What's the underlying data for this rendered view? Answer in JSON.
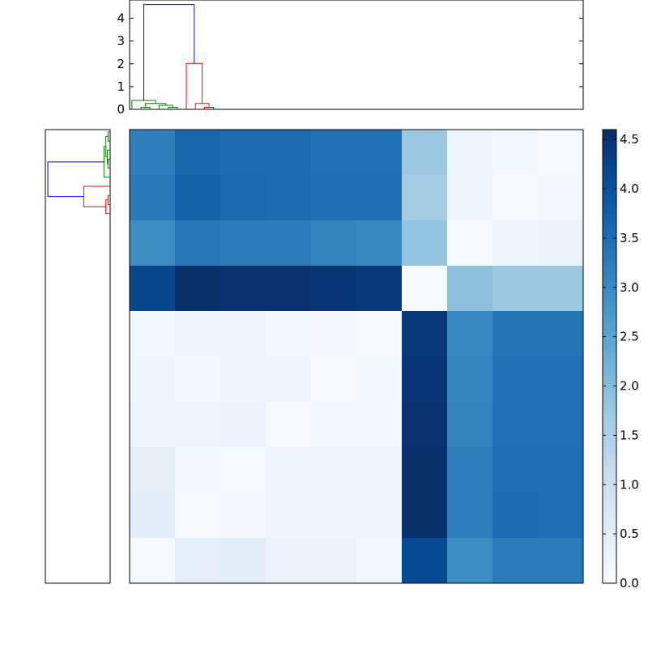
{
  "chart_data": [
    {
      "type": "dendrogram",
      "orientation": "top",
      "ylim": [
        0,
        4.8
      ],
      "y_ticks": [
        0,
        1,
        2,
        3,
        4
      ],
      "leaf_count": 10,
      "links": [
        {
          "color": "#008000",
          "left_x": 2.5,
          "left_y": 0,
          "right_x": 4.5,
          "right_y": 0,
          "height": 0.09
        },
        {
          "color": "#008000",
          "left_x": 8.5,
          "left_y": 0,
          "right_x": 10.5,
          "right_y": 0,
          "height": 0.09
        },
        {
          "color": "#008000",
          "left_x": 6.5,
          "left_y": 0,
          "right_x": 9.5,
          "right_y": 0.09,
          "height": 0.18
        },
        {
          "color": "#008000",
          "left_x": 3.5,
          "left_y": 0.09,
          "right_x": 8.0,
          "right_y": 0.18,
          "height": 0.26
        },
        {
          "color": "#008000",
          "left_x": 0.5,
          "left_y": 0,
          "right_x": 5.75,
          "right_y": 0.26,
          "height": 0.39
        },
        {
          "color": "#ff0000",
          "left_x": 16.5,
          "left_y": 0,
          "right_x": 18.5,
          "right_y": 0,
          "height": 0.09
        },
        {
          "color": "#ff0000",
          "left_x": 14.5,
          "left_y": 0,
          "right_x": 17.5,
          "right_y": 0.09,
          "height": 0.26
        },
        {
          "color": "#ff0000",
          "left_x": 12.5,
          "left_y": 0,
          "right_x": 16.0,
          "right_y": 0.26,
          "height": 2.02
        },
        {
          "color": "#0000ff",
          "left_x": 3.13,
          "left_y": 0.39,
          "right_x": 14.25,
          "right_y": 2.02,
          "height": 4.6
        }
      ]
    },
    {
      "type": "dendrogram",
      "orientation": "left",
      "leaf_count": 10,
      "links": [
        {
          "color": "#008000",
          "left_x": 0.5,
          "left_y": 0,
          "right_x": 2.5,
          "right_y": 0,
          "height": 0.09
        },
        {
          "color": "#008000",
          "left_x": 6.5,
          "left_y": 0,
          "right_x": 8.5,
          "right_y": 0,
          "height": 0.09
        },
        {
          "color": "#008000",
          "left_x": 4.5,
          "left_y": 0,
          "right_x": 7.5,
          "right_y": 0.09,
          "height": 0.12
        },
        {
          "color": "#008000",
          "left_x": 1.5,
          "left_y": 0.09,
          "right_x": 6.0,
          "right_y": 0.12,
          "height": 0.18
        },
        {
          "color": "#008000",
          "left_x": 3.75,
          "left_y": 0.18,
          "right_x": 10.5,
          "right_y": 0,
          "height": 0.26
        },
        {
          "color": "#ff0000",
          "left_x": 14.5,
          "left_y": 0,
          "right_x": 16.5,
          "right_y": 0,
          "height": 0.09
        },
        {
          "color": "#ff0000",
          "left_x": 15.5,
          "left_y": 0.09,
          "right_x": 18.5,
          "right_y": 0,
          "height": 0.18
        },
        {
          "color": "#ff0000",
          "left_x": 12.5,
          "left_y": 0,
          "right_x": 17.0,
          "right_y": 0.18,
          "height": 1.1
        },
        {
          "color": "#0000ff",
          "left_x": 7.12,
          "left_y": 0.26,
          "right_x": 14.75,
          "right_y": 1.1,
          "height": 2.6
        }
      ]
    },
    {
      "type": "heatmap",
      "rows": 10,
      "cols": 10,
      "colormap": "Blues",
      "vmin": 0,
      "vmax": 4.6,
      "values": [
        [
          3.2,
          3.65,
          3.55,
          3.55,
          3.45,
          3.45,
          1.75,
          0.25,
          0.15,
          0.05
        ],
        [
          3.3,
          3.7,
          3.6,
          3.55,
          3.5,
          3.5,
          1.65,
          0.2,
          0.05,
          0.1
        ],
        [
          2.95,
          3.35,
          3.25,
          3.25,
          3.15,
          3.05,
          1.85,
          0.05,
          0.25,
          0.3
        ],
        [
          4.2,
          4.6,
          4.55,
          4.55,
          4.5,
          4.45,
          0.05,
          1.9,
          1.75,
          1.75
        ],
        [
          0.15,
          0.25,
          0.25,
          0.15,
          0.1,
          0.05,
          4.45,
          3.05,
          3.4,
          3.4
        ],
        [
          0.2,
          0.15,
          0.2,
          0.25,
          0.05,
          0.15,
          4.5,
          3.1,
          3.45,
          3.45
        ],
        [
          0.25,
          0.25,
          0.3,
          0.05,
          0.15,
          0.15,
          4.55,
          3.15,
          3.45,
          3.45
        ],
        [
          0.4,
          0.1,
          0.05,
          0.2,
          0.2,
          0.2,
          4.6,
          3.2,
          3.5,
          3.5
        ],
        [
          0.5,
          0.05,
          0.1,
          0.2,
          0.2,
          0.25,
          4.65,
          3.2,
          3.55,
          3.5
        ],
        [
          0.05,
          0.45,
          0.5,
          0.3,
          0.3,
          0.15,
          4.15,
          2.95,
          3.25,
          3.25
        ]
      ]
    },
    {
      "type": "colorbar",
      "colormap": "Blues",
      "range": [
        0,
        4.6
      ],
      "ticks": [
        "0.0",
        "0.5",
        "1.0",
        "1.5",
        "2.0",
        "2.5",
        "3.0",
        "3.5",
        "4.0",
        "4.5"
      ]
    }
  ],
  "colors": {
    "axis": "#000000",
    "green": "#008000",
    "red": "#ff0000",
    "blue": "#0000ff"
  }
}
